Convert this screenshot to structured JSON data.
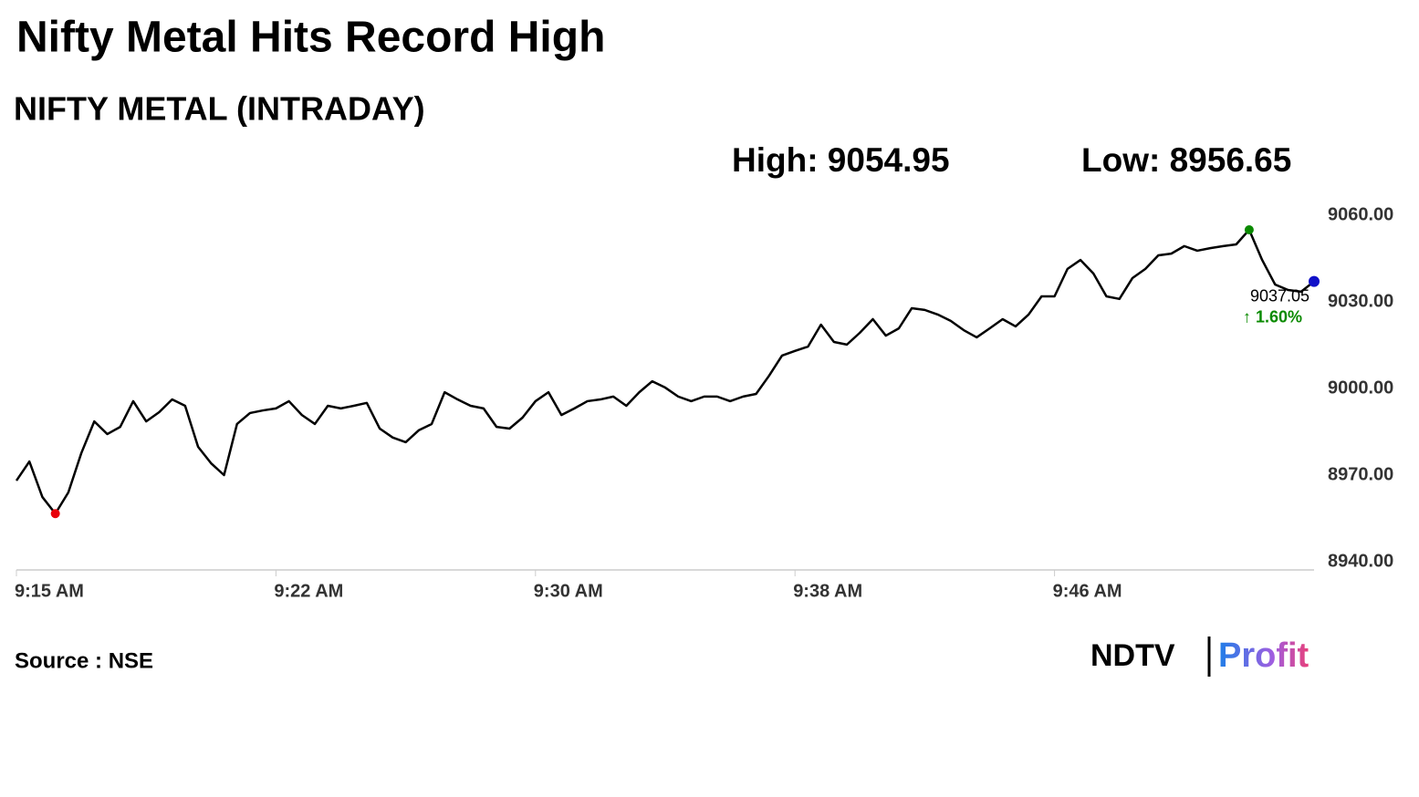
{
  "chart_data": {
    "type": "line",
    "title": "Nifty Metal Hits Record High",
    "subtitle": "NIFTY METAL (INTRADAY)",
    "high_label": "High: 9054.95",
    "low_label": "Low: 8956.65",
    "last_label": "9037.05",
    "change_label": "↑ 1.60%",
    "source": "Source : NSE",
    "logo": [
      "NDTV",
      "Profit"
    ],
    "categories": [
      "9:15 AM",
      null,
      null,
      null,
      null,
      null,
      null,
      null,
      null,
      null,
      null,
      null,
      null,
      null,
      null,
      null,
      null,
      null,
      null,
      null,
      "9:22 AM",
      null,
      null,
      null,
      null,
      null,
      null,
      null,
      null,
      null,
      null,
      null,
      null,
      null,
      null,
      null,
      null,
      null,
      null,
      null,
      "9:30 AM",
      null,
      null,
      null,
      null,
      null,
      null,
      null,
      null,
      null,
      null,
      null,
      null,
      null,
      null,
      null,
      null,
      null,
      null,
      null,
      "9:38 AM",
      null,
      null,
      null,
      null,
      null,
      null,
      null,
      null,
      null,
      null,
      null,
      null,
      null,
      null,
      null,
      null,
      null,
      null,
      null,
      "9:46 AM",
      null,
      null,
      null,
      null,
      null,
      null,
      null,
      null,
      null,
      null,
      null,
      null,
      null,
      null,
      null,
      null,
      null,
      null,
      null,
      null
    ],
    "values": [
      8968.1,
      8974.7,
      8962.4,
      8956.65,
      8964,
      8977.6,
      8988.6,
      8984.2,
      8986.7,
      8995.6,
      8988.6,
      8991.8,
      8996.2,
      8994,
      8979.8,
      8974.1,
      8970,
      8987.7,
      8991.5,
      8992.4,
      8993.1,
      8995.6,
      8990.8,
      8987.7,
      8994,
      8993.1,
      8994,
      8995,
      8986.1,
      8983,
      8981.4,
      8985.5,
      8987.7,
      8998.7,
      8996.2,
      8994,
      8993.1,
      8986.7,
      8986.1,
      8989.9,
      8995.6,
      8998.7,
      8990.8,
      8993.1,
      8995.6,
      8996.2,
      8997.2,
      8994,
      8998.7,
      9002.5,
      9000.3,
      8997.2,
      8995.6,
      8997.2,
      8997.2,
      8995.6,
      8997.2,
      8998.1,
      9004.4,
      9011.4,
      9013,
      9014.5,
      9022.1,
      9016.1,
      9015.2,
      9019.3,
      9024,
      9018.3,
      9020.8,
      9027.8,
      9027.2,
      9025.6,
      9023.4,
      9020.2,
      9017.7,
      9020.8,
      9024,
      9021.5,
      9025.6,
      9031.9,
      9031.9,
      9041.4,
      9044.5,
      9039.8,
      9031.9,
      9031,
      9038.2,
      9041.4,
      9046.1,
      9046.7,
      9049.3,
      9047.7,
      9048.6,
      9049.3,
      9049.9,
      9054.95,
      9044.5,
      9036,
      9034.1,
      9033.5,
      9037.05
    ],
    "color": "#000000",
    "low_color": "#e8000b",
    "high_color": "#0a8a00",
    "last_color": "#1010c8",
    "change_color": "#0a8a00",
    "ylim": [
      8940,
      9060
    ],
    "yticks": [
      {
        "value": 8940,
        "label": "8940.00"
      },
      {
        "value": 8970,
        "label": "8970.00"
      },
      {
        "value": 9000,
        "label": "9000.00"
      },
      {
        "value": 9030,
        "label": "9030.00"
      },
      {
        "value": 9060,
        "label": "9060.00"
      }
    ],
    "grid": false
  }
}
